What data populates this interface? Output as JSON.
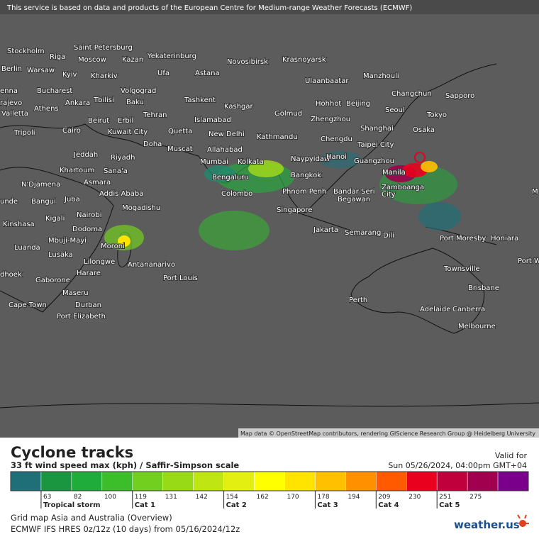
{
  "banner": "This service is based on data and products of the European Centre for Medium-range Weather Forecasts (ECMWF)",
  "attribution": "Map data © OpenStreetMap contributors, rendering GIScience Research Group @ Heidelberg University",
  "map": {
    "labels": [
      "Stockholm",
      "Saint Petersburg",
      "Riga",
      "Moscow",
      "Kazan",
      "Yekaterinburg",
      "Novosibirsk",
      "Krasnoyarsk",
      "Berlin",
      "Warsaw",
      "Kyiv",
      "Kharkiv",
      "Ufa",
      "Astana",
      "Ulaanbaatar",
      "Manzhouli",
      "enna",
      "Bucharest",
      "Volgograd",
      "Changchun",
      "Sapporo",
      "rajevo",
      "Ankara",
      "Tbilisi",
      "Baku",
      "Tashkent",
      "Kashgar",
      "Hohhot",
      "Beijing",
      "Seoul",
      "Athens",
      "Tehran",
      "Islamabad",
      "Golmud",
      "Zhengzhou",
      "Tokyo",
      "Valletta",
      "Beirut",
      "Erbil",
      "Shanghai",
      "Osaka",
      "Tripoli",
      "Cairo",
      "Kuwait City",
      "Quetta",
      "New Delhi",
      "Kathmandu",
      "Chengdu",
      "Doha",
      "Muscat",
      "Allahabad",
      "Taipei City",
      "Jeddah",
      "Riyadh",
      "Naypyidaw",
      "Hanoi",
      "Mumbai",
      "Kolkata",
      "Guangzhou",
      "Khartoum",
      "Sana'a",
      "Bengaluru",
      "Bangkok",
      "Manila",
      "Asmara",
      "N'Djamena",
      "Addis Ababa",
      "Colombo",
      "Phnom Penh",
      "Bandar Seri",
      "Begawan",
      "Zamboanga",
      "City",
      "M",
      "unde",
      "Bangui",
      "Juba",
      "Mogadishu",
      "Singapore",
      "Nairobi",
      "Kigali",
      "Kinshasa",
      "Dodoma",
      "Jakarta",
      "Semarang",
      "Dili",
      "Port Moresby",
      "Honiara",
      "Mbuji-Mayi",
      "Moroni",
      "Luanda",
      "Lusaka",
      "Lilongwe",
      "Antananarivo",
      "Port W",
      "dhoek",
      "Harare",
      "Port Louis",
      "Townsville",
      "Gaborone",
      "Brisbane",
      "Maseru",
      "Perth",
      "Cape Town",
      "Durban",
      "Adelaide",
      "Canberra",
      "Port Elizabeth",
      "Melbourne"
    ]
  },
  "legend": {
    "title": "Cyclone tracks",
    "subtitle": "33 ft wind speed max (kph) / Saffir-Simpson scale",
    "valid_label": "Valid for",
    "valid_time": "Sun 05/26/2024, 04:00pm GMT+04",
    "colors": [
      "#1f6f78",
      "#1a9641",
      "#20ac3a",
      "#3cbd2a",
      "#72cf1f",
      "#98da16",
      "#bfe512",
      "#e2ef10",
      "#ffff00",
      "#ffe400",
      "#ffc000",
      "#ff9000",
      "#ff5a00",
      "#e8001e",
      "#c0003c",
      "#a0004e",
      "#7a008c"
    ],
    "ticks": [
      63,
      82,
      100,
      119,
      131,
      142,
      154,
      162,
      170,
      178,
      194,
      209,
      230,
      251,
      275
    ],
    "categories": [
      "Tropical storm",
      "Cat 1",
      "Cat 2",
      "Cat 3",
      "Cat 4",
      "Cat 5"
    ],
    "grid": "Grid map Asia and Australia (Overview)",
    "model": "ECMWF IFS HRES 0z/12z (10 days) from  05/16/2024/12z",
    "brand": "weather.us"
  }
}
